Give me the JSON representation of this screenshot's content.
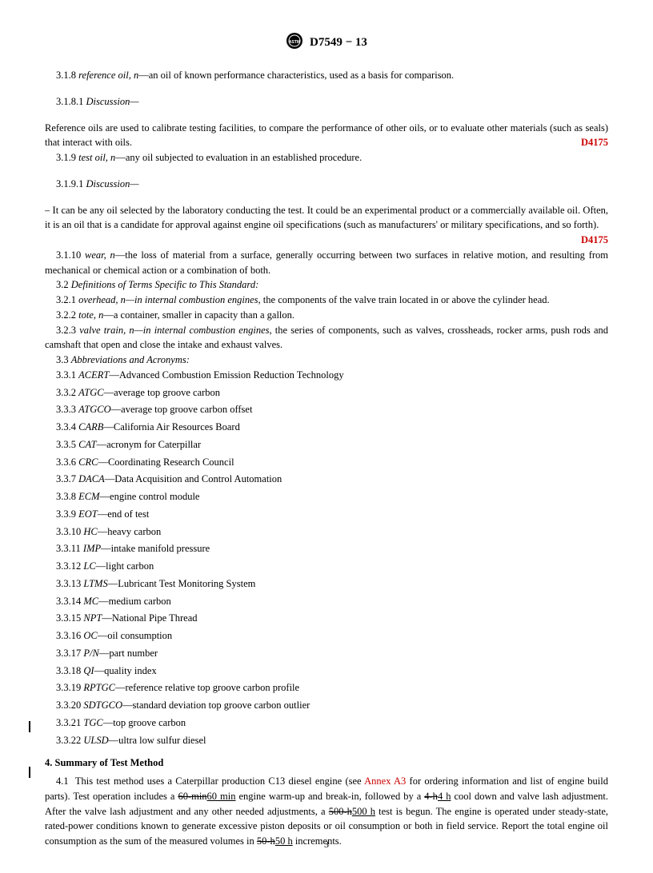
{
  "header": {
    "doc_id": "D7549 − 13"
  },
  "defs": {
    "d318": {
      "num": "3.1.8",
      "term": "reference oil, n",
      "def": "—an oil of known performance characteristics, used as a basis for comparison."
    },
    "d3181": {
      "num": "3.1.8.1",
      "label": "Discussion—"
    },
    "d3181_text": "Reference oils are used to calibrate testing facilities, to compare the performance of other oils, or to evaluate other materials (such as seals) that interact with oils.",
    "d3181_ref": "D4175",
    "d319": {
      "num": "3.1.9",
      "term": "test oil, n",
      "def": "—any oil subjected to evaluation in an established procedure."
    },
    "d3191": {
      "num": "3.1.9.1",
      "label": "Discussion—"
    },
    "d3191_text": "– It can be any oil selected by the laboratory conducting the test. It could be an experimental product or a commercially available oil. Often, it is an oil that is a candidate for approval against engine oil specifications (such as manufacturers' or military specifications, and so forth).",
    "d3191_ref": "D4175",
    "d3110": {
      "num": "3.1.10",
      "term": "wear, n",
      "def": "—the loss of material from a surface, generally occurring between two surfaces in relative motion, and resulting from mechanical or chemical action or a combination of both."
    },
    "s32": {
      "num": "3.2",
      "label": "Definitions of Terms Specific to This Standard:"
    },
    "d321": {
      "num": "3.2.1",
      "term": "overhead, n",
      "context": "—in internal combustion engines",
      "def": ", the components of the valve train located in or above the cylinder head."
    },
    "d322": {
      "num": "3.2.2",
      "term": "tote, n",
      "def": "—a container, smaller in capacity than a gallon."
    },
    "d323": {
      "num": "3.2.3",
      "term": "valve train, n",
      "context": "—in internal combustion engines",
      "def": ", the series of components, such as valves, crossheads, rocker arms, push rods and camshaft that open and close the intake and exhaust valves."
    },
    "s33": {
      "num": "3.3",
      "label": "Abbreviations and Acronyms:"
    }
  },
  "abbr": [
    {
      "num": "3.3.1",
      "term": "ACERT",
      "def": "—Advanced Combustion Emission Reduction Technology"
    },
    {
      "num": "3.3.2",
      "term": "ATGC",
      "def": "—average top groove carbon"
    },
    {
      "num": "3.3.3",
      "term": "ATGCO",
      "def": "—average top groove carbon offset"
    },
    {
      "num": "3.3.4",
      "term": "CARB",
      "def": "—California Air Resources Board"
    },
    {
      "num": "3.3.5",
      "term": "CAT",
      "def": "—acronym for Caterpillar"
    },
    {
      "num": "3.3.6",
      "term": "CRC",
      "def": "—Coordinating Research Council"
    },
    {
      "num": "3.3.7",
      "term": "DACA",
      "def": "—Data Acquisition and Control Automation"
    },
    {
      "num": "3.3.8",
      "term": "ECM",
      "def": "—engine control module"
    },
    {
      "num": "3.3.9",
      "term": "EOT",
      "def": "—end of test"
    },
    {
      "num": "3.3.10",
      "term": "HC",
      "def": "—heavy carbon"
    },
    {
      "num": "3.3.11",
      "term": "IMP",
      "def": "—intake manifold pressure"
    },
    {
      "num": "3.3.12",
      "term": "LC",
      "def": "—light carbon"
    },
    {
      "num": "3.3.13",
      "term": "LTMS",
      "def": "—Lubricant Test Monitoring System"
    },
    {
      "num": "3.3.14",
      "term": "MC",
      "def": "—medium carbon"
    },
    {
      "num": "3.3.15",
      "term": "NPT",
      "def": "—National Pipe Thread"
    },
    {
      "num": "3.3.16",
      "term": "OC",
      "def": "—oil consumption"
    },
    {
      "num": "3.3.17",
      "term": "P/N",
      "def": "—part number"
    },
    {
      "num": "3.3.18",
      "term": "QI",
      "def": "—quality index"
    },
    {
      "num": "3.3.19",
      "term": "RPTGC",
      "def": "—reference relative top groove carbon profile"
    },
    {
      "num": "3.3.20",
      "term": "SDTGCO",
      "def": "—standard deviation top groove carbon outlier"
    },
    {
      "num": "3.3.21",
      "term": "TGC",
      "def": "—top groove carbon"
    },
    {
      "num": "3.3.22",
      "term": "ULSD",
      "def": "—ultra low sulfur diesel"
    }
  ],
  "section4": {
    "heading": "4.  Summary of Test Method",
    "p41_num": "4.1",
    "p41_a": "This test method uses a Caterpillar production C13 diesel engine (see ",
    "p41_annex": "Annex A3",
    "p41_b": " for ordering information and list of engine build parts). Test operation includes a ",
    "p41_old1": "60-min",
    "p41_new1": "60 min",
    "p41_c": " engine warm-up and break-in, followed by a ",
    "p41_old2": "4-h",
    "p41_new2": "4 h",
    "p41_d": " cool down and valve lash adjustment. After the valve lash adjustment and any other needed adjustments, a ",
    "p41_old3": "500-h",
    "p41_new3": "500 h",
    "p41_e": " test is begun. The engine is operated under steady-state, rated-power conditions known to generate excessive piston deposits or oil consumption or both in field service. Report the total engine oil consumption as the sum of the measured volumes in ",
    "p41_old4": "50-h",
    "p41_new4": "50 h",
    "p41_f": " increments."
  },
  "page_number": "3",
  "colors": {
    "link": "#cc0000",
    "text": "#000000",
    "background": "#ffffff"
  }
}
